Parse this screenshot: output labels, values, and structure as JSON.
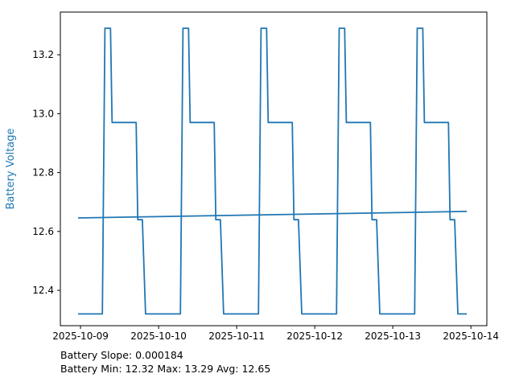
{
  "figure": {
    "background": "#ffffff",
    "axes_edge_color": "#000000",
    "footer_line1": "Battery Slope: 0.000184",
    "footer_line2": "Battery Min: 12.32 Max: 13.29 Avg: 12.65"
  },
  "chart_data": {
    "type": "line",
    "title": "",
    "xlabel": "",
    "ylabel": "Battery Voltage",
    "ylabel_color": "#1f77b4",
    "line_color": "#1f77b4",
    "grid": false,
    "legend": "none",
    "x_unit": "hours since 2025-10-09 00:00",
    "x_tick_labels": [
      "2025-10-09",
      "2025-10-10",
      "2025-10-11",
      "2025-10-12",
      "2025-10-13",
      "2025-10-14"
    ],
    "x_tick_hours": [
      0,
      24,
      48,
      72,
      96,
      120
    ],
    "y_tick_labels": [
      "12.4",
      "12.6",
      "12.8",
      "13.0",
      "13.2"
    ],
    "y_tick_values": [
      12.4,
      12.6,
      12.8,
      13.0,
      13.2
    ],
    "xlim_hours": [
      -6.2,
      124.9
    ],
    "ylim": [
      12.28,
      13.345
    ],
    "stats": {
      "slope_per_hour": 0.000184,
      "min": 12.32,
      "max": 13.29,
      "avg": 12.65
    },
    "series": [
      {
        "name": "Battery Voltage",
        "color": "#1f77b4",
        "points": [
          [
            -0.75,
            12.32
          ],
          [
            6.7,
            12.32
          ],
          [
            7.5,
            13.29
          ],
          [
            9.2,
            13.29
          ],
          [
            9.7,
            12.97
          ],
          [
            17.1,
            12.97
          ],
          [
            17.6,
            12.64
          ],
          [
            19.0,
            12.64
          ],
          [
            20.0,
            12.32
          ],
          [
            30.7,
            12.32
          ],
          [
            31.5,
            13.29
          ],
          [
            33.2,
            13.29
          ],
          [
            33.7,
            12.97
          ],
          [
            41.1,
            12.97
          ],
          [
            41.6,
            12.64
          ],
          [
            43.0,
            12.64
          ],
          [
            44.0,
            12.32
          ],
          [
            54.7,
            12.32
          ],
          [
            55.5,
            13.29
          ],
          [
            57.2,
            13.29
          ],
          [
            57.7,
            12.97
          ],
          [
            65.1,
            12.97
          ],
          [
            65.6,
            12.64
          ],
          [
            67.0,
            12.64
          ],
          [
            68.0,
            12.32
          ],
          [
            78.7,
            12.32
          ],
          [
            79.5,
            13.29
          ],
          [
            81.2,
            13.29
          ],
          [
            81.7,
            12.97
          ],
          [
            89.1,
            12.97
          ],
          [
            89.6,
            12.64
          ],
          [
            91.0,
            12.64
          ],
          [
            92.0,
            12.32
          ],
          [
            102.7,
            12.32
          ],
          [
            103.5,
            13.29
          ],
          [
            105.2,
            13.29
          ],
          [
            105.7,
            12.97
          ],
          [
            113.1,
            12.97
          ],
          [
            113.6,
            12.64
          ],
          [
            115.0,
            12.64
          ],
          [
            116.0,
            12.32
          ],
          [
            118.75,
            12.32
          ]
        ]
      },
      {
        "name": "Battery Voltage Trend",
        "color": "#1f77b4",
        "points": [
          [
            -0.75,
            12.646
          ],
          [
            118.75,
            12.668
          ]
        ]
      }
    ]
  }
}
